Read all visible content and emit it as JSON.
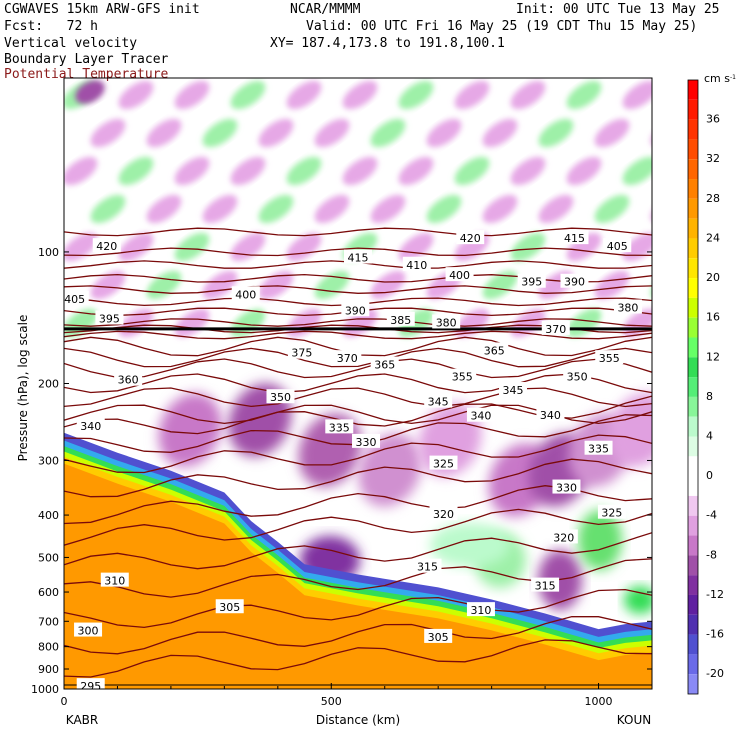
{
  "header": {
    "model": "CGWAVES 15km ARW-GFS init",
    "org": "NCAR/MMMM",
    "init": "Init: 00 UTC Tue 13 May 25",
    "fcst": "Fcst:   72 h",
    "valid": "Valid: 00 UTC Fri 16 May 25 (19 CDT Thu 15 May 25)",
    "field1": "Vertical velocity",
    "xy": "XY= 187.4,173.8 to 191.8,100.1",
    "field2": "Boundary Layer Tracer",
    "field3": "Potential Temperature"
  },
  "colors": {
    "theta_line": "#7a0a0a",
    "title_red": "#8b1a1a"
  },
  "chart_data": {
    "type": "heatmap",
    "xlabel": "Distance (km)",
    "ylabel": "Pressure (hPa), log scale",
    "xlim": [
      0,
      1100
    ],
    "ylim": [
      1000,
      40
    ],
    "log_scale_y": true,
    "x_ticks": [
      0,
      500,
      1000
    ],
    "x_tick_labels": [
      "0",
      "500",
      "1000"
    ],
    "x_end_labels": {
      "left": "KABR",
      "right": "KOUN"
    },
    "y_ticks": [
      100,
      200,
      300,
      400,
      500,
      600,
      700,
      800,
      900,
      1000
    ],
    "y_tick_labels": [
      "100",
      "200",
      "300",
      "400",
      "500",
      "600",
      "700",
      "800",
      "900",
      "1000"
    ],
    "colorbar": {
      "units": "cm s",
      "units_exp": "-1",
      "labels": [
        "36",
        "32",
        "28",
        "24",
        "20",
        "16",
        "12",
        "8",
        "4",
        "0",
        "-4",
        "-8",
        "-12",
        "-16",
        "-20"
      ],
      "bins": [
        {
          "from": 38,
          "to": 40,
          "color": "#ff0000"
        },
        {
          "from": 36,
          "to": 38,
          "color": "#ff1a00"
        },
        {
          "from": 34,
          "to": 36,
          "color": "#ff3300"
        },
        {
          "from": 32,
          "to": 34,
          "color": "#ff4d00"
        },
        {
          "from": 30,
          "to": 32,
          "color": "#ff6600"
        },
        {
          "from": 28,
          "to": 30,
          "color": "#ff8000"
        },
        {
          "from": 26,
          "to": 28,
          "color": "#ff9900"
        },
        {
          "from": 24,
          "to": 26,
          "color": "#ffb300"
        },
        {
          "from": 22,
          "to": 24,
          "color": "#ffcc00"
        },
        {
          "from": 20,
          "to": 22,
          "color": "#ffe600"
        },
        {
          "from": 18,
          "to": 20,
          "color": "#ffff00"
        },
        {
          "from": 16,
          "to": 18,
          "color": "#ccff00"
        },
        {
          "from": 14,
          "to": 16,
          "color": "#99ff33"
        },
        {
          "from": 12,
          "to": 14,
          "color": "#66ff66"
        },
        {
          "from": 10,
          "to": 12,
          "color": "#33dd55"
        },
        {
          "from": 8,
          "to": 10,
          "color": "#55ee77"
        },
        {
          "from": 6,
          "to": 8,
          "color": "#88f599"
        },
        {
          "from": 4,
          "to": 6,
          "color": "#bbfacc"
        },
        {
          "from": 2,
          "to": 4,
          "color": "#ddfde4"
        },
        {
          "from": -2,
          "to": 2,
          "color": "#ffffff"
        },
        {
          "from": -4,
          "to": -2,
          "color": "#f0c8f0"
        },
        {
          "from": -6,
          "to": -4,
          "color": "#e0a0e0"
        },
        {
          "from": -8,
          "to": -6,
          "color": "#c878c8"
        },
        {
          "from": -10,
          "to": -8,
          "color": "#a050a8"
        },
        {
          "from": -12,
          "to": -10,
          "color": "#8030a0"
        },
        {
          "from": -14,
          "to": -12,
          "color": "#6020a0"
        },
        {
          "from": -16,
          "to": -14,
          "color": "#5030b0"
        },
        {
          "from": -18,
          "to": -16,
          "color": "#5050d0"
        },
        {
          "from": -20,
          "to": -18,
          "color": "#6a6ae8"
        },
        {
          "from": -22,
          "to": -20,
          "color": "#8a8af5"
        }
      ]
    },
    "theta_labels": [
      {
        "value": "420",
        "x": 80,
        "p": 97
      },
      {
        "value": "420",
        "x": 760,
        "p": 93
      },
      {
        "value": "415",
        "x": 550,
        "p": 103
      },
      {
        "value": "415",
        "x": 955,
        "p": 93
      },
      {
        "value": "410",
        "x": 660,
        "p": 107
      },
      {
        "value": "405",
        "x": 20,
        "p": 128
      },
      {
        "value": "405",
        "x": 1035,
        "p": 97
      },
      {
        "value": "400",
        "x": 340,
        "p": 125
      },
      {
        "value": "400",
        "x": 740,
        "p": 113
      },
      {
        "value": "395",
        "x": 85,
        "p": 142
      },
      {
        "value": "395",
        "x": 875,
        "p": 117
      },
      {
        "value": "390",
        "x": 545,
        "p": 136
      },
      {
        "value": "390",
        "x": 955,
        "p": 117
      },
      {
        "value": "385",
        "x": 630,
        "p": 143
      },
      {
        "value": "380",
        "x": 715,
        "p": 145
      },
      {
        "value": "380",
        "x": 1055,
        "p": 134
      },
      {
        "value": "375",
        "x": 445,
        "p": 170
      },
      {
        "value": "370",
        "x": 530,
        "p": 175
      },
      {
        "value": "370",
        "x": 920,
        "p": 150
      },
      {
        "value": "365",
        "x": 600,
        "p": 181
      },
      {
        "value": "365",
        "x": 805,
        "p": 168
      },
      {
        "value": "360",
        "x": 120,
        "p": 196
      },
      {
        "value": "355",
        "x": 745,
        "p": 193
      },
      {
        "value": "355",
        "x": 1020,
        "p": 175
      },
      {
        "value": "350",
        "x": 405,
        "p": 215
      },
      {
        "value": "350",
        "x": 960,
        "p": 193
      },
      {
        "value": "345",
        "x": 700,
        "p": 220
      },
      {
        "value": "345",
        "x": 840,
        "p": 207
      },
      {
        "value": "340",
        "x": 50,
        "p": 250
      },
      {
        "value": "340",
        "x": 780,
        "p": 237
      },
      {
        "value": "340",
        "x": 910,
        "p": 236
      },
      {
        "value": "335",
        "x": 515,
        "p": 252
      },
      {
        "value": "335",
        "x": 1000,
        "p": 282
      },
      {
        "value": "330",
        "x": 565,
        "p": 272
      },
      {
        "value": "330",
        "x": 940,
        "p": 346
      },
      {
        "value": "325",
        "x": 710,
        "p": 305
      },
      {
        "value": "325",
        "x": 1025,
        "p": 395
      },
      {
        "value": "320",
        "x": 710,
        "p": 398
      },
      {
        "value": "320",
        "x": 935,
        "p": 450
      },
      {
        "value": "315",
        "x": 680,
        "p": 525
      },
      {
        "value": "315",
        "x": 900,
        "p": 580
      },
      {
        "value": "310",
        "x": 95,
        "p": 565
      },
      {
        "value": "310",
        "x": 780,
        "p": 660
      },
      {
        "value": "305",
        "x": 310,
        "p": 650
      },
      {
        "value": "305",
        "x": 700,
        "p": 760
      },
      {
        "value": "300",
        "x": 45,
        "p": 735
      },
      {
        "value": "295",
        "x": 50,
        "p": 985
      }
    ]
  }
}
